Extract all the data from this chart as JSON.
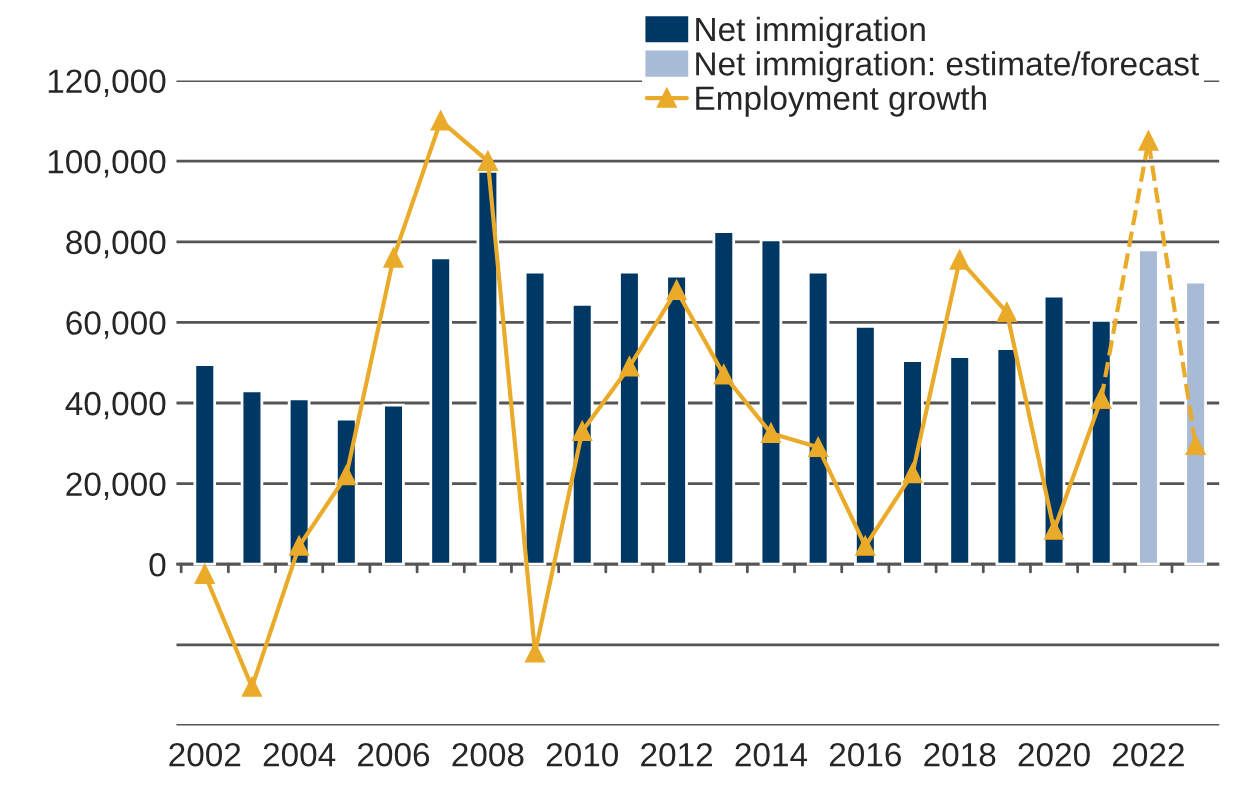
{
  "chart_data": {
    "type": "bar",
    "categories": [
      "2002",
      null,
      "2004",
      null,
      "2006",
      null,
      "2008",
      null,
      "2010",
      null,
      "2012",
      null,
      "2014",
      null,
      "2016",
      null,
      "2018",
      null,
      "2020",
      null,
      "2022",
      null
    ],
    "series": [
      {
        "name": "Net immigration",
        "color": "#003865",
        "values": [
          49500,
          43000,
          41000,
          36000,
          39500,
          76000,
          97500,
          72500,
          64500,
          72500,
          71500,
          82500,
          80500,
          72500,
          59000,
          50500,
          51500,
          53500,
          66500,
          60500,
          null,
          null
        ]
      },
      {
        "name": "Net immigration: estimate/forecast",
        "color": "#a7bbd7",
        "values": [
          null,
          null,
          null,
          null,
          null,
          null,
          null,
          null,
          null,
          null,
          null,
          null,
          null,
          null,
          null,
          null,
          null,
          null,
          null,
          null,
          78000,
          70000
        ]
      },
      {
        "name": "Employment growth",
        "type": "line",
        "color": "#eaaa2a",
        "marker": "triangle",
        "line_style": "solid",
        "values": [
          -2500,
          -30500,
          4500,
          22000,
          76000,
          110000,
          100000,
          -22000,
          33000,
          49000,
          68000,
          47000,
          32500,
          29000,
          4500,
          22500,
          75500,
          62500,
          8500,
          41000,
          null,
          null
        ]
      },
      {
        "type": "line",
        "color": "#eaaa2a",
        "marker": "triangle",
        "line_style": "dashed",
        "values": [
          null,
          null,
          null,
          null,
          null,
          null,
          null,
          null,
          null,
          null,
          null,
          null,
          null,
          null,
          null,
          null,
          null,
          null,
          null,
          41000,
          105000,
          29500
        ]
      }
    ],
    "ylim": [
      -40000,
      120000
    ],
    "yticks": [
      {
        "value": -40000,
        "label": null
      },
      {
        "value": -20000,
        "label": null
      },
      {
        "value": 0,
        "label": "0"
      },
      {
        "value": 20000,
        "label": "20,000"
      },
      {
        "value": 40000,
        "label": "40,000"
      },
      {
        "value": 60000,
        "label": "60,000"
      },
      {
        "value": 80000,
        "label": "80,000"
      },
      {
        "value": 100000,
        "label": "100,000"
      },
      {
        "value": 120000,
        "label": "120,000"
      }
    ],
    "grid": "y",
    "legend": "top right"
  }
}
